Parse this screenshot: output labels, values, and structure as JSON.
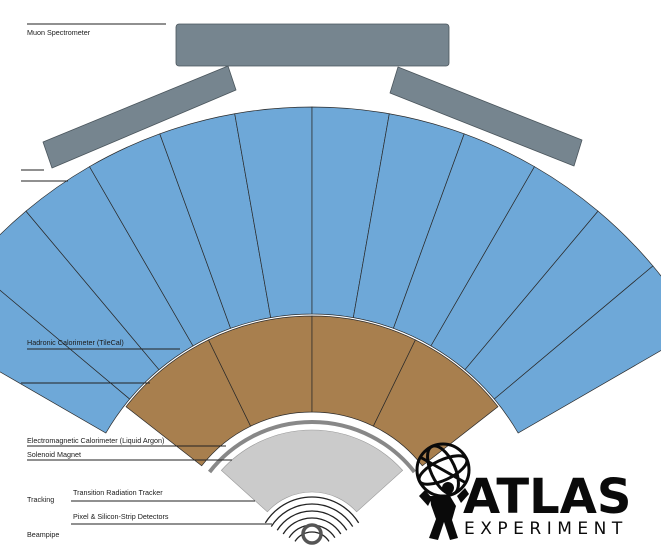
{
  "labels": {
    "muon": "Muon Spectrometer",
    "hadronic": "Hadronic Calorimeter (TileCal)",
    "em": "Electromagnetic Calorimeter (Liquid Argon)",
    "solenoid": "Solenoid Magnet",
    "tracking": "Tracking",
    "trt": "Transition Radiation Tracker",
    "pixel": "Pixel & Silicon-Strip Detectors",
    "beampipe": "Beampipe"
  },
  "logo": {
    "title": "ATLAS",
    "subtitle": "EXPERIMENT"
  },
  "colors": {
    "muon": "#76858f",
    "hadronic": "#6ea8d8",
    "em": "#a87f4e",
    "solenoid": "#888888",
    "tracker": "#cbcbcb",
    "outline": "#2a2a2a"
  }
}
